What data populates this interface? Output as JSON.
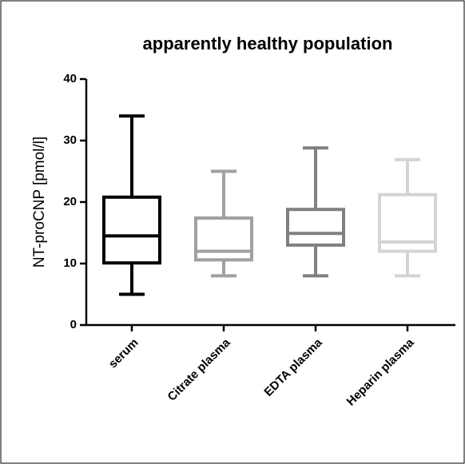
{
  "chart_data": {
    "type": "box",
    "title": "apparently healthy population",
    "y_label": "NT-proCNP [pmol/l]",
    "categories": [
      "serum",
      "Citrate plasma",
      "EDTA plasma",
      "Heparin plasma"
    ],
    "whisker_low": [
      5,
      8,
      8,
      8
    ],
    "q1": [
      10.1,
      10.6,
      13,
      12
    ],
    "median": [
      14.5,
      12,
      14.9,
      13.5
    ],
    "q3": [
      20.8,
      17.4,
      18.8,
      21.2
    ],
    "whisker_high": [
      34,
      25,
      28.8,
      26.9
    ],
    "colors": [
      "#000000",
      "#a0a0a0",
      "#808080",
      "#d4d4d4"
    ],
    "ylim": [
      0,
      40
    ],
    "yticks": [
      0,
      10,
      20,
      30,
      40
    ]
  }
}
